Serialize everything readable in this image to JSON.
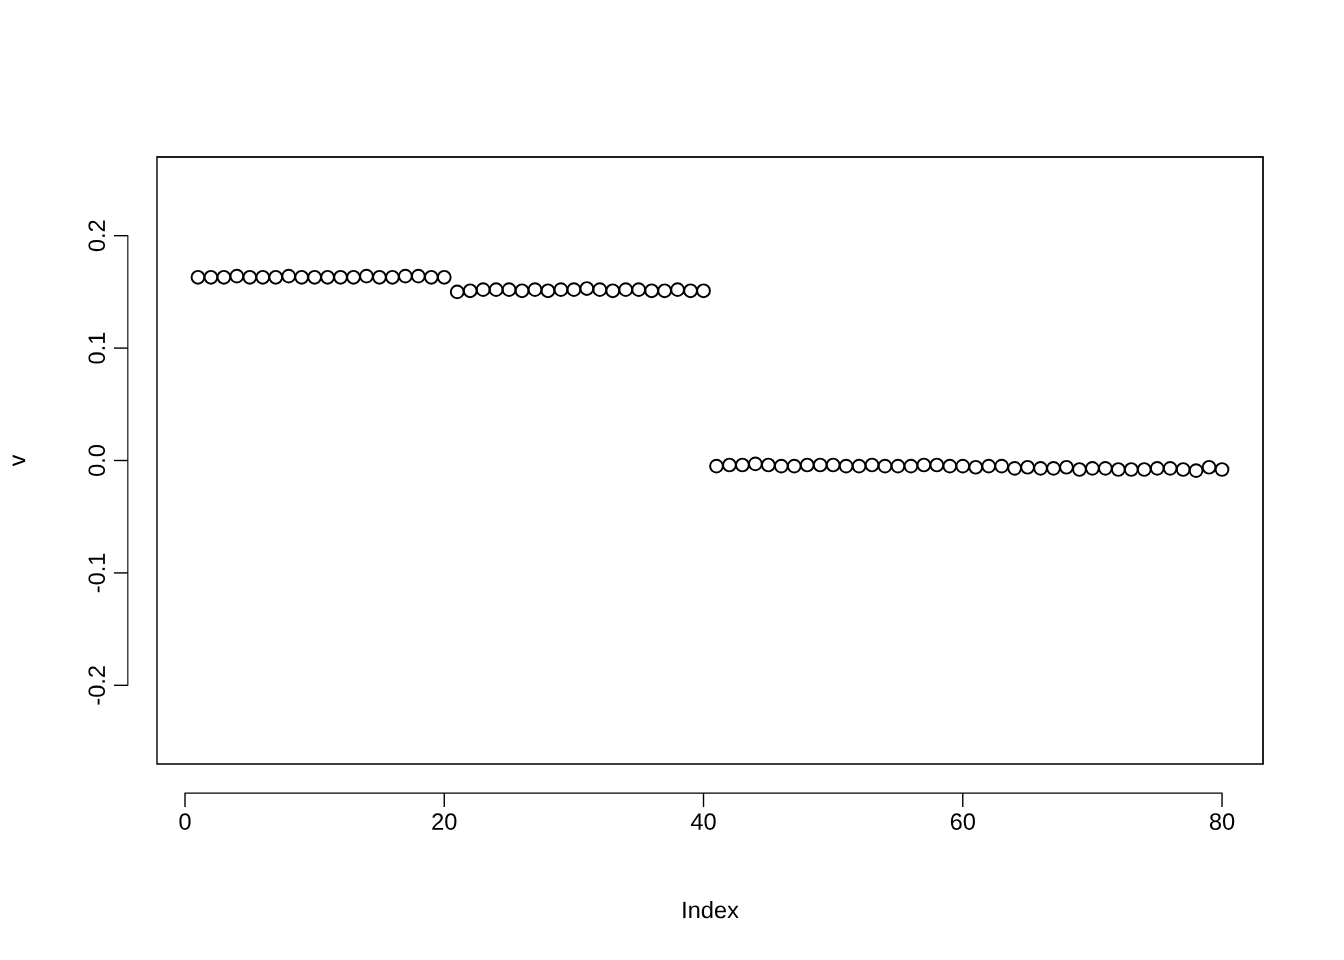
{
  "chart_data": {
    "type": "scatter",
    "xlabel": "Index",
    "ylabel": "v",
    "x": [
      1,
      2,
      3,
      4,
      5,
      6,
      7,
      8,
      9,
      10,
      11,
      12,
      13,
      14,
      15,
      16,
      17,
      18,
      19,
      20,
      21,
      22,
      23,
      24,
      25,
      26,
      27,
      28,
      29,
      30,
      31,
      32,
      33,
      34,
      35,
      36,
      37,
      38,
      39,
      40,
      41,
      42,
      43,
      44,
      45,
      46,
      47,
      48,
      49,
      50,
      51,
      52,
      53,
      54,
      55,
      56,
      57,
      58,
      59,
      60,
      61,
      62,
      63,
      64,
      65,
      66,
      67,
      68,
      69,
      70,
      71,
      72,
      73,
      74,
      75,
      76,
      77,
      78,
      79,
      80
    ],
    "series": [
      {
        "color": "#000000",
        "values": [
          0.163,
          0.163,
          0.163,
          0.164,
          0.163,
          0.163,
          0.163,
          0.164,
          0.163,
          0.163,
          0.163,
          0.163,
          0.163,
          0.164,
          0.163,
          0.163,
          0.164,
          0.164,
          0.163,
          0.163,
          0.15,
          0.151,
          0.152,
          0.152,
          0.152,
          0.151,
          0.152,
          0.151,
          0.152,
          0.152,
          0.153,
          0.152,
          0.151,
          0.152,
          0.152,
          0.151,
          0.151,
          0.152,
          0.151,
          0.151,
          -0.005,
          -0.004,
          -0.004,
          -0.003,
          -0.004,
          -0.005,
          -0.005,
          -0.004,
          -0.004,
          -0.004,
          -0.005,
          -0.005,
          -0.004,
          -0.005,
          -0.005,
          -0.005,
          -0.004,
          -0.004,
          -0.005,
          -0.005,
          -0.006,
          -0.005,
          -0.005,
          -0.007,
          -0.006,
          -0.007,
          -0.007,
          -0.006,
          -0.008,
          -0.007,
          -0.007,
          -0.008,
          -0.008,
          -0.008,
          -0.007,
          -0.007,
          -0.008,
          -0.009,
          -0.006,
          -0.008
        ]
      }
    ],
    "xlim": [
      -2.16,
      83.16
    ],
    "ylim": [
      -0.27,
      0.27
    ],
    "xticks": [
      0,
      20,
      40,
      60,
      80
    ],
    "yticks": [
      -0.2,
      -0.1,
      {
        "value": 0,
        "label": "0.0"
      },
      0.1,
      0.2
    ],
    "marker": "circle",
    "grid": false
  }
}
